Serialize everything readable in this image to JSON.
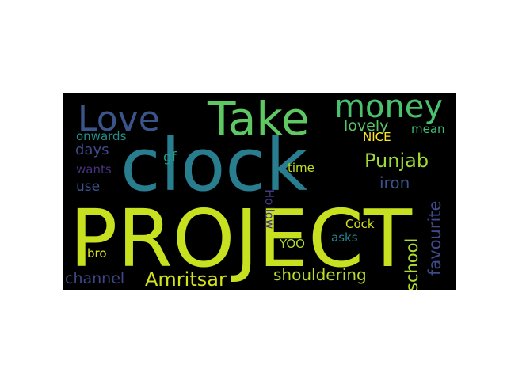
{
  "wordcloud": {
    "words": [
      {
        "text": "PROJECT",
        "color": "#c7e020"
      },
      {
        "text": "clock",
        "color": "#287d8e"
      },
      {
        "text": "Take",
        "color": "#5ec962"
      },
      {
        "text": "money",
        "color": "#4ac16d"
      },
      {
        "text": "Love",
        "color": "#3a548c"
      },
      {
        "text": "Amritsar",
        "color": "#d2e21b"
      },
      {
        "text": "shouldering",
        "color": "#b8de29"
      },
      {
        "text": "Punjab",
        "color": "#a0da39"
      },
      {
        "text": "school",
        "color": "#addc30"
      },
      {
        "text": "favourite",
        "color": "#3e4a89"
      },
      {
        "text": "lovely",
        "color": "#56c667"
      },
      {
        "text": "iron",
        "color": "#3b528b"
      },
      {
        "text": "channel",
        "color": "#3f4788"
      },
      {
        "text": "days",
        "color": "#3e4c8a"
      },
      {
        "text": "onwards",
        "color": "#21918c"
      },
      {
        "text": "wants",
        "color": "#46337e"
      },
      {
        "text": "use",
        "color": "#3b528b"
      },
      {
        "text": "gf",
        "color": "#1f9e89"
      },
      {
        "text": "mean",
        "color": "#3dbc74"
      },
      {
        "text": "NICE",
        "color": "#fde725"
      },
      {
        "text": "time",
        "color": "#c2df23"
      },
      {
        "text": "Hollow",
        "color": "#443983"
      },
      {
        "text": "Cock",
        "color": "#d0e11c"
      },
      {
        "text": "YOO",
        "color": "#addc30"
      },
      {
        "text": "asks",
        "color": "#24868e"
      },
      {
        "text": "bro",
        "color": "#dde318"
      }
    ]
  }
}
